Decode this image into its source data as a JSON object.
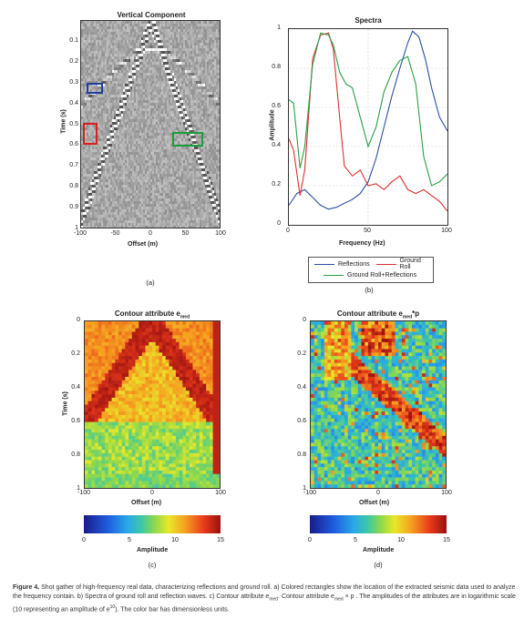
{
  "panel_a": {
    "title": "Vertical Component",
    "xlabel": "Offset (m)",
    "ylabel": "Time (s)",
    "xticks": [
      "-100",
      "-50",
      "0",
      "50",
      "100"
    ],
    "yticks": [
      "0.1",
      "0.2",
      "0.3",
      "0.4",
      "0.5",
      "0.6",
      "0.7",
      "0.8",
      "0.9",
      "1"
    ],
    "label": "(a)",
    "rect_colors": {
      "blue": "#1f3e9e",
      "red": "#d92020",
      "green": "#1a9e3a"
    }
  },
  "panel_b": {
    "title": "Spectra",
    "xlabel": "Frequency (Hz)",
    "ylabel": "Amplitude",
    "label": "(b)",
    "legend": [
      "Reflections",
      "Ground Roll",
      "Ground Roll+Reflections"
    ]
  },
  "panel_c": {
    "title": "Contour attribute e",
    "title_sub": "med",
    "xlabel": "Offset (m)",
    "ylabel": "Time (s)",
    "xticks": [
      "-100",
      "0",
      "100"
    ],
    "yticks": [
      "0",
      "0.2",
      "0.4",
      "0.6",
      "0.8",
      "1"
    ],
    "label": "(c)",
    "colorbar_ticks": [
      "0",
      "5",
      "10",
      "15"
    ],
    "colorbar_label": "Amplitude"
  },
  "panel_d": {
    "title": "Contour attribute e",
    "title_sub": "med",
    "title_suffix": "*p",
    "xlabel": "Offset (m)",
    "xticks": [
      "-100",
      "0",
      "100"
    ],
    "yticks": [
      "0",
      "0.2",
      "0.4",
      "0.6",
      "0.8",
      "1"
    ],
    "label": "(d)",
    "colorbar_ticks": [
      "0",
      "5",
      "10",
      "15"
    ],
    "colorbar_label": "Amplitude"
  },
  "chart_data": [
    {
      "type": "line",
      "title": "Spectra",
      "xlabel": "Frequency (Hz)",
      "ylabel": "Amplitude",
      "xlim": [
        0,
        100
      ],
      "ylim": [
        0,
        1
      ],
      "xticks": [
        "0",
        "50",
        "100"
      ],
      "yticks": [
        "0",
        "0.2",
        "0.4",
        "0.6",
        "0.8",
        "1"
      ],
      "legend_position": "below",
      "series": [
        {
          "name": "Reflections",
          "color": "#2b4fa8",
          "x": [
            0,
            5,
            10,
            15,
            20,
            25,
            30,
            35,
            40,
            45,
            50,
            55,
            60,
            65,
            70,
            75,
            78,
            82,
            86,
            90,
            95,
            100
          ],
          "y": [
            0.1,
            0.16,
            0.18,
            0.14,
            0.1,
            0.08,
            0.09,
            0.11,
            0.13,
            0.16,
            0.22,
            0.34,
            0.5,
            0.66,
            0.8,
            0.93,
            0.99,
            0.96,
            0.85,
            0.7,
            0.55,
            0.48
          ]
        },
        {
          "name": "Ground Roll",
          "color": "#d93030",
          "x": [
            0,
            3,
            7,
            10,
            15,
            20,
            25,
            28,
            32,
            35,
            40,
            45,
            50,
            55,
            60,
            65,
            70,
            75,
            80,
            85,
            90,
            95,
            100
          ],
          "y": [
            0.44,
            0.38,
            0.15,
            0.28,
            0.85,
            0.97,
            0.98,
            0.9,
            0.55,
            0.3,
            0.25,
            0.28,
            0.2,
            0.21,
            0.18,
            0.22,
            0.25,
            0.18,
            0.16,
            0.18,
            0.15,
            0.12,
            0.07
          ]
        },
        {
          "name": "Ground Roll+Reflections",
          "color": "#2a9e44",
          "x": [
            0,
            3,
            7,
            10,
            15,
            20,
            25,
            28,
            32,
            36,
            40,
            45,
            50,
            55,
            60,
            65,
            70,
            75,
            80,
            85,
            90,
            95,
            100
          ],
          "y": [
            0.64,
            0.62,
            0.29,
            0.4,
            0.82,
            0.98,
            0.97,
            0.92,
            0.78,
            0.72,
            0.7,
            0.55,
            0.4,
            0.5,
            0.68,
            0.78,
            0.84,
            0.86,
            0.72,
            0.35,
            0.2,
            0.22,
            0.26
          ]
        }
      ]
    },
    {
      "type": "heatmap",
      "title": "Contour attribute emed",
      "xlabel": "Offset (m)",
      "ylabel": "Time (s)",
      "xlim": [
        -100,
        100
      ],
      "ylim": [
        0,
        1
      ],
      "colorbar_range": [
        0,
        15
      ],
      "colorbar_label": "Amplitude"
    },
    {
      "type": "heatmap",
      "title": "Contour attribute emed*p",
      "xlabel": "Offset (m)",
      "xlim": [
        -100,
        100
      ],
      "ylim": [
        0,
        1
      ],
      "colorbar_range": [
        0,
        15
      ],
      "colorbar_label": "Amplitude"
    }
  ],
  "caption": {
    "figure": "Figure 4.",
    "text": " Shot gather of high-frequency real data, characterizing reflections and ground roll. a) Colored rectangles show the location of the extracted seismic data used to analyze the frequency contain.  b) Spectra of ground roll and reflection waves.  c) Contour attribute e",
    "sub1": "med",
    "text2": ". Contour attribute  e",
    "sub2": "med",
    "text3": " × p . The amplitudes of the attributes are in logarithmic scale (10 representing an amplitude of e",
    "sup": "10",
    "text4": "). The color bar has dimensionless units."
  }
}
